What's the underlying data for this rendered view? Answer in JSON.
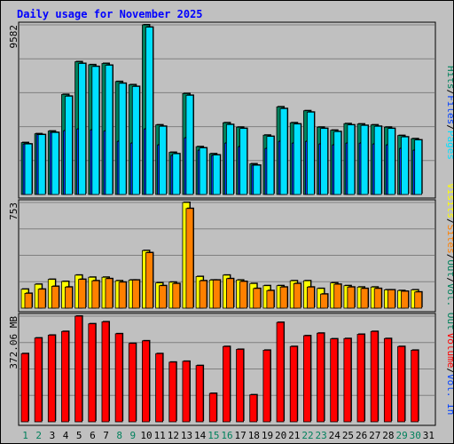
{
  "title": "Daily usage for November 2025",
  "colors": {
    "background": "#c0c0c0",
    "hits": "#00805c",
    "files": "#0040ff",
    "pages": "#00e0ff",
    "visits": "#ffff00",
    "sites": "#ff8000",
    "kbytes": "#ff0000",
    "title": "#0000ff",
    "weekend_day": "#00805c",
    "weekday_day": "#000000",
    "grid": "#808080"
  },
  "chart_data": [
    {
      "type": "bar",
      "name": "hits-files-pages",
      "categories": [
        "1",
        "2",
        "3",
        "4",
        "5",
        "6",
        "7",
        "8",
        "9",
        "10",
        "11",
        "12",
        "13",
        "14",
        "15",
        "16",
        "17",
        "18",
        "19",
        "20",
        "21",
        "22",
        "23",
        "24",
        "25",
        "26",
        "27",
        "28",
        "29",
        "30",
        "31"
      ],
      "ylabel_value": "9582",
      "ylim": [
        0,
        9582
      ],
      "legend": [
        "Hits",
        "/",
        "Files",
        "/",
        "Pages"
      ],
      "series": [
        {
          "name": "Hits",
          "values": [
            2930,
            3430,
            3580,
            5650,
            7500,
            7330,
            7400,
            6380,
            6200,
            9582,
            3930,
            2380,
            5700,
            2700,
            2300,
            4050,
            3800,
            1730,
            3350,
            4950,
            4050,
            4730,
            3800,
            3630,
            4000,
            3980,
            3930,
            3800,
            3330,
            3150,
            0
          ]
        },
        {
          "name": "Files",
          "values": [
            2850,
            3380,
            3500,
            3600,
            3700,
            3650,
            3580,
            3000,
            2900,
            3700,
            2800,
            2200,
            3200,
            2500,
            2200,
            2900,
            2700,
            1650,
            2600,
            3000,
            2900,
            3000,
            2850,
            2800,
            2900,
            2900,
            2850,
            2800,
            2600,
            2500,
            0
          ]
        },
        {
          "name": "Pages",
          "values": [
            2850,
            3380,
            3500,
            5550,
            7400,
            7230,
            7300,
            6280,
            6100,
            9450,
            3850,
            2300,
            5600,
            2630,
            2230,
            3950,
            3730,
            1650,
            3280,
            4850,
            3980,
            4650,
            3730,
            3550,
            3930,
            3900,
            3850,
            3730,
            3250,
            3080,
            0
          ]
        }
      ]
    },
    {
      "type": "bar",
      "name": "visits-sites",
      "categories": [
        "1",
        "2",
        "3",
        "4",
        "5",
        "6",
        "7",
        "8",
        "9",
        "10",
        "11",
        "12",
        "13",
        "14",
        "15",
        "16",
        "17",
        "18",
        "19",
        "20",
        "21",
        "22",
        "23",
        "24",
        "25",
        "26",
        "27",
        "28",
        "29",
        "30",
        "31"
      ],
      "ylabel_value": "753",
      "ylim": [
        0,
        753
      ],
      "legend": [
        "Visits",
        "/",
        "Sites",
        "/",
        "Out",
        "/",
        "Vol. Out"
      ],
      "series": [
        {
          "name": "Visits",
          "values": [
            135,
            170,
            205,
            190,
            235,
            220,
            220,
            195,
            200,
            410,
            180,
            185,
            753,
            225,
            200,
            235,
            200,
            175,
            160,
            160,
            195,
            195,
            140,
            180,
            160,
            150,
            150,
            130,
            125,
            130,
            0
          ]
        },
        {
          "name": "Sites",
          "values": [
            105,
            135,
            155,
            150,
            205,
            195,
            210,
            185,
            200,
            395,
            160,
            175,
            710,
            195,
            200,
            210,
            190,
            140,
            125,
            150,
            175,
            150,
            100,
            170,
            150,
            140,
            140,
            130,
            120,
            115,
            0
          ]
        }
      ]
    },
    {
      "type": "bar",
      "name": "volume",
      "categories": [
        "1",
        "2",
        "3",
        "4",
        "5",
        "6",
        "7",
        "8",
        "9",
        "10",
        "11",
        "12",
        "13",
        "14",
        "15",
        "16",
        "17",
        "18",
        "19",
        "20",
        "21",
        "22",
        "23",
        "24",
        "25",
        "26",
        "27",
        "28",
        "29",
        "30",
        "31"
      ],
      "ylabel_value": "372.06 MB",
      "ylim": [
        0,
        372.06
      ],
      "legend": [
        "Volume",
        "/",
        "Vol. In"
      ],
      "series": [
        {
          "name": "Volume",
          "values": [
            240,
            295,
            305,
            318,
            372,
            345,
            352,
            310,
            276,
            285,
            240,
            210,
            213,
            198,
            100,
            265,
            255,
            95,
            252,
            350,
            265,
            303,
            312,
            292,
            293,
            308,
            318,
            293,
            265,
            252,
            0
          ]
        }
      ]
    }
  ],
  "days": [
    {
      "label": "1",
      "weekend": true
    },
    {
      "label": "2",
      "weekend": true
    },
    {
      "label": "3",
      "weekend": false
    },
    {
      "label": "4",
      "weekend": false
    },
    {
      "label": "5",
      "weekend": false
    },
    {
      "label": "6",
      "weekend": false
    },
    {
      "label": "7",
      "weekend": false
    },
    {
      "label": "8",
      "weekend": true
    },
    {
      "label": "9",
      "weekend": true
    },
    {
      "label": "10",
      "weekend": false
    },
    {
      "label": "11",
      "weekend": false
    },
    {
      "label": "12",
      "weekend": false
    },
    {
      "label": "13",
      "weekend": false
    },
    {
      "label": "14",
      "weekend": false
    },
    {
      "label": "15",
      "weekend": true
    },
    {
      "label": "16",
      "weekend": true
    },
    {
      "label": "17",
      "weekend": false
    },
    {
      "label": "18",
      "weekend": false
    },
    {
      "label": "19",
      "weekend": false
    },
    {
      "label": "20",
      "weekend": false
    },
    {
      "label": "21",
      "weekend": false
    },
    {
      "label": "22",
      "weekend": true
    },
    {
      "label": "23",
      "weekend": true
    },
    {
      "label": "24",
      "weekend": false
    },
    {
      "label": "25",
      "weekend": false
    },
    {
      "label": "26",
      "weekend": false
    },
    {
      "label": "27",
      "weekend": false
    },
    {
      "label": "28",
      "weekend": false
    },
    {
      "label": "29",
      "weekend": true
    },
    {
      "label": "30",
      "weekend": true
    },
    {
      "label": "31",
      "weekend": false
    }
  ]
}
